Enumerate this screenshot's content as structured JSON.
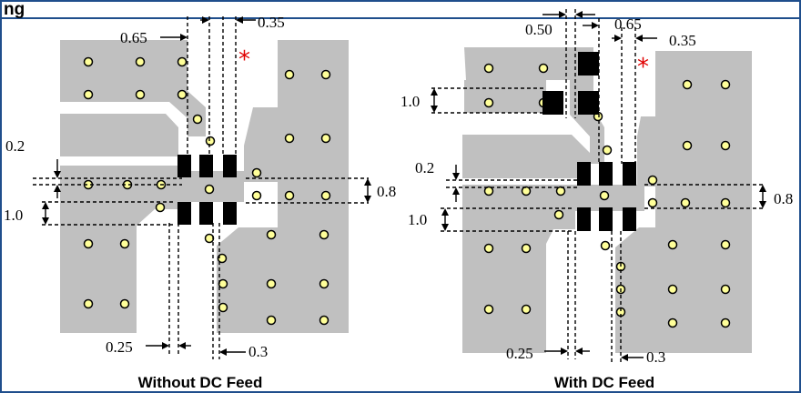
{
  "header": {
    "title": "ng"
  },
  "colors": {
    "border": "#1f4e8c",
    "copper": "#c0c0c0",
    "via": "#ffff99",
    "pad": "#000000",
    "asterisk": "#e00000"
  },
  "left": {
    "caption": "Without DC Feed",
    "dims": {
      "w065": "0.65",
      "w035": "0.35",
      "g02": "0.2",
      "h10": "1.0",
      "h08": "0.8",
      "w025": "0.25",
      "w03": "0.3"
    },
    "asterisk": "*"
  },
  "right": {
    "caption": "With DC Feed",
    "dims": {
      "w050": "0.50",
      "w065": "0.65",
      "w035": "0.35",
      "h10top": "1.0",
      "g02": "0.2",
      "h10": "1.0",
      "h08": "0.8",
      "w025": "0.25",
      "w03": "0.3"
    },
    "asterisk": "*"
  }
}
